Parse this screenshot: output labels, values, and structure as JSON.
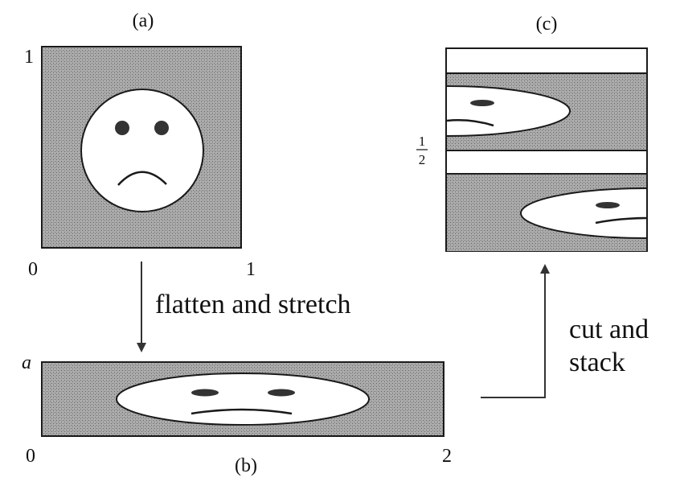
{
  "panels": {
    "a": {
      "label": "(a)",
      "tick_top": "1",
      "tick_origin": "0",
      "tick_right": "1"
    },
    "b": {
      "label": "(b)",
      "tick_top": "a",
      "tick_origin": "0",
      "tick_right": "2"
    },
    "c": {
      "label": "(c)",
      "tick_half_num": "1",
      "tick_half_den": "2"
    }
  },
  "arrows": {
    "flatten": {
      "caption": "flatten and stretch"
    },
    "cut": {
      "caption_line1": "cut and",
      "caption_line2": "stack"
    }
  },
  "colors": {
    "fill_pattern": "#8a8a8a",
    "fill_bg": "#c8c8c8",
    "stroke": "#1a1a1a",
    "face": "#ffffff"
  }
}
